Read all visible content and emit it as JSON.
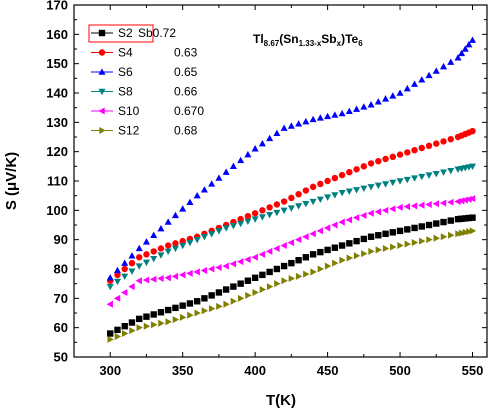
{
  "chart_data": {
    "type": "scatter",
    "xlabel": "T(K)",
    "ylabel": "S (μV/K)",
    "xlim": [
      275,
      560
    ],
    "ylim": [
      50,
      170
    ],
    "x_ticks": [
      300,
      350,
      400,
      450,
      500,
      550
    ],
    "y_ticks": [
      50,
      60,
      70,
      80,
      90,
      100,
      110,
      120,
      130,
      140,
      150,
      160,
      170
    ],
    "annotation": {
      "parts": [
        {
          "text": "Tl",
          "shift": "base"
        },
        {
          "text": "8.67",
          "shift": "sub"
        },
        {
          "text": "(Sn",
          "shift": "base"
        },
        {
          "text": "1.33-x",
          "shift": "sub"
        },
        {
          "text": "Sb",
          "shift": "base"
        },
        {
          "text": "x",
          "shift": "sub"
        },
        {
          "text": ")Te",
          "shift": "base"
        },
        {
          "text": "6",
          "shift": "sub"
        }
      ]
    },
    "legend_position": "top-left",
    "series": [
      {
        "name": "S2",
        "value_label": "Sb0.72",
        "marker": "square",
        "color": "#000000",
        "x": [
          300,
          320,
          340,
          360,
          380,
          400,
          420,
          440,
          460,
          480,
          500,
          520,
          540,
          550
        ],
        "y": [
          58,
          63,
          66,
          69,
          73,
          77,
          81,
          85,
          88,
          91,
          93,
          95,
          97,
          97.5
        ]
      },
      {
        "name": "S4",
        "value_label": "0.63",
        "marker": "circle",
        "color": "#ff0000",
        "x": [
          300,
          320,
          340,
          360,
          380,
          400,
          420,
          440,
          460,
          480,
          500,
          520,
          540,
          550
        ],
        "y": [
          76,
          84,
          88,
          91,
          95,
          99,
          103,
          108,
          112,
          116,
          119,
          122,
          125,
          127
        ]
      },
      {
        "name": "S6",
        "value_label": "0.65",
        "marker": "triangle-up",
        "color": "#0000ff",
        "x": [
          300,
          320,
          340,
          360,
          380,
          400,
          420,
          440,
          460,
          480,
          500,
          520,
          540,
          550
        ],
        "y": [
          77,
          87,
          96,
          105,
          113,
          121,
          128,
          131,
          133,
          136,
          140,
          146,
          152,
          158
        ]
      },
      {
        "name": "S8",
        "value_label": "0.66",
        "marker": "triangle-down",
        "color": "#008080",
        "x": [
          300,
          320,
          340,
          360,
          380,
          400,
          420,
          440,
          460,
          480,
          500,
          520,
          540,
          550
        ],
        "y": [
          74,
          81,
          86,
          90,
          94,
          97,
          100,
          103,
          106,
          108,
          110,
          112,
          114,
          115
        ]
      },
      {
        "name": "S10",
        "value_label": "0.670",
        "marker": "triangle-left",
        "color": "#ff00ff",
        "x": [
          300,
          320,
          340,
          360,
          380,
          400,
          420,
          440,
          460,
          480,
          500,
          520,
          540,
          550
        ],
        "y": [
          68,
          76,
          77,
          79,
          81,
          84,
          88,
          92,
          96,
          99,
          101,
          102,
          103,
          104
        ]
      },
      {
        "name": "S12",
        "value_label": "0.68",
        "marker": "triangle-right",
        "color": "#808000",
        "x": [
          300,
          320,
          340,
          360,
          380,
          400,
          420,
          440,
          460,
          480,
          500,
          520,
          540,
          550
        ],
        "y": [
          56,
          60,
          62,
          65,
          68,
          72,
          76,
          79,
          83,
          86,
          88,
          90,
          92,
          93
        ]
      }
    ]
  }
}
